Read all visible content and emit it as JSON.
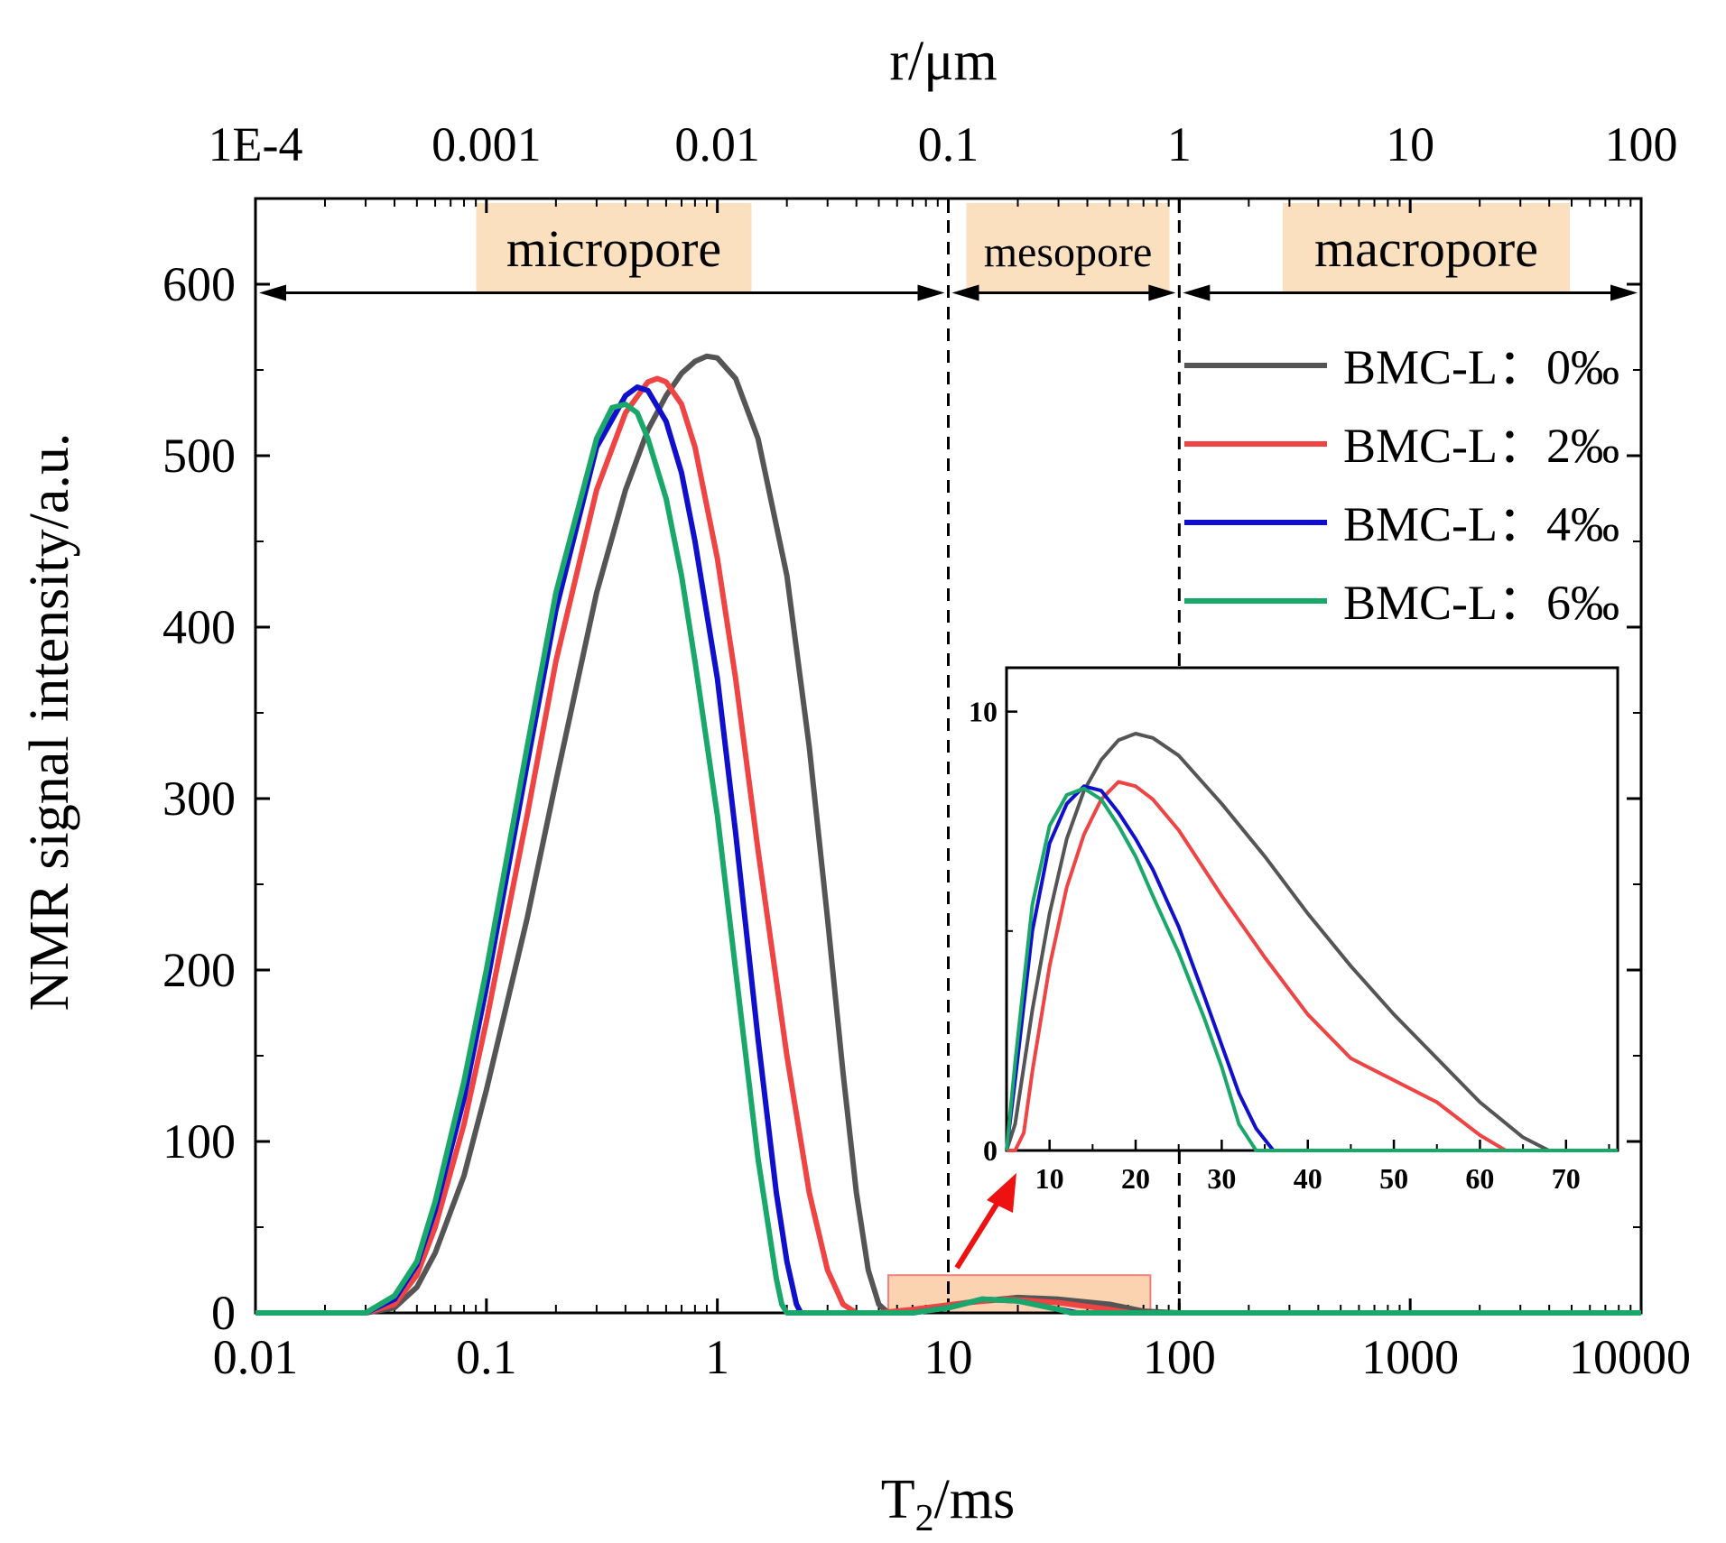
{
  "chart_data": [
    {
      "type": "line",
      "xscale": "log",
      "xlim": [
        0.01,
        10000
      ],
      "ylim": [
        0,
        650
      ],
      "xlabel": "T2/ms",
      "xlabel_main": "T",
      "xlabel_sub": "2",
      "xlabel_rest": "/ms",
      "ylabel": "NMR signal intensity/a.u.",
      "top_axis_label": "r/μm",
      "x_ticks": [
        0.01,
        0.1,
        1,
        10,
        100,
        1000,
        10000
      ],
      "x_tick_labels": [
        "0.01",
        "0.1",
        "1",
        "10",
        "100",
        "1000",
        "10000"
      ],
      "top_ticks": [
        0.01,
        0.1,
        1,
        10,
        100,
        1000,
        10000
      ],
      "top_tick_labels": [
        "1E-4",
        "0.001",
        "0.01",
        "0.1",
        "1",
        "10",
        "100"
      ],
      "y_ticks": [
        0,
        100,
        200,
        300,
        400,
        500,
        600
      ],
      "y_tick_labels": [
        "0",
        "100",
        "200",
        "300",
        "400",
        "500",
        "600"
      ],
      "boundaries": [
        10,
        100
      ],
      "regions": [
        {
          "label": "micropore",
          "from": 0.01,
          "to": 10,
          "color": "#fbe0c0"
        },
        {
          "label": "mesopore",
          "from": 10,
          "to": 100,
          "color": "#fbe0c0"
        },
        {
          "label": "macropore",
          "from": 100,
          "to": 10000,
          "color": "#fbe0c0"
        }
      ],
      "region_arrow_y": 595,
      "highlight_box": {
        "x": [
          5.5,
          75
        ],
        "y": [
          0,
          22
        ],
        "color": "#fbd3b0",
        "border": "#f08080"
      },
      "legend_position": "top-right",
      "series": [
        {
          "name": "BMC-L：0‰",
          "color": "#555555",
          "x": [
            0.01,
            0.03,
            0.04,
            0.05,
            0.06,
            0.08,
            0.1,
            0.15,
            0.2,
            0.3,
            0.4,
            0.5,
            0.6,
            0.7,
            0.8,
            0.9,
            1.0,
            1.2,
            1.5,
            2.0,
            2.5,
            3.0,
            3.5,
            4.0,
            4.5,
            5.0,
            5.5,
            8,
            12,
            20,
            30,
            50,
            70,
            100,
            10000
          ],
          "y": [
            0,
            0,
            3,
            15,
            35,
            80,
            130,
            230,
            310,
            420,
            480,
            515,
            535,
            548,
            555,
            558,
            557,
            545,
            510,
            430,
            330,
            230,
            140,
            70,
            25,
            5,
            0,
            2,
            6,
            9,
            8,
            5,
            1,
            0,
            0
          ]
        },
        {
          "name": "BMC-L：2‰",
          "color": "#ee4444",
          "x": [
            0.01,
            0.03,
            0.04,
            0.05,
            0.06,
            0.08,
            0.1,
            0.15,
            0.2,
            0.3,
            0.4,
            0.5,
            0.55,
            0.6,
            0.7,
            0.8,
            1.0,
            1.2,
            1.5,
            2.0,
            2.5,
            3.0,
            3.5,
            4.0,
            4.5,
            5.0,
            7,
            12,
            18,
            30,
            50,
            62,
            100,
            10000
          ],
          "y": [
            0,
            0,
            5,
            22,
            50,
            110,
            170,
            290,
            380,
            480,
            525,
            543,
            545,
            543,
            530,
            505,
            440,
            370,
            270,
            150,
            70,
            25,
            5,
            0,
            0,
            0,
            2,
            6,
            8,
            6,
            2,
            0,
            0,
            0
          ]
        },
        {
          "name": "BMC-L：4‰",
          "color": "#1010cc",
          "x": [
            0.01,
            0.03,
            0.04,
            0.05,
            0.06,
            0.08,
            0.1,
            0.15,
            0.2,
            0.3,
            0.4,
            0.45,
            0.5,
            0.6,
            0.7,
            0.8,
            1.0,
            1.2,
            1.5,
            1.8,
            2.0,
            2.2,
            2.3,
            7,
            10,
            14,
            20,
            30,
            36,
            100,
            10000
          ],
          "y": [
            0,
            0,
            8,
            28,
            60,
            125,
            190,
            320,
            410,
            505,
            535,
            540,
            538,
            520,
            490,
            450,
            370,
            280,
            160,
            70,
            30,
            5,
            0,
            0,
            3,
            8,
            7,
            2,
            0,
            0,
            0
          ]
        },
        {
          "name": "BMC-L：6‰",
          "color": "#1aa86a",
          "x": [
            0.01,
            0.03,
            0.04,
            0.05,
            0.06,
            0.08,
            0.1,
            0.15,
            0.2,
            0.3,
            0.35,
            0.4,
            0.45,
            0.5,
            0.6,
            0.7,
            0.8,
            1.0,
            1.2,
            1.5,
            1.8,
            1.9,
            2.0,
            7,
            10,
            14,
            20,
            30,
            34,
            100,
            10000
          ],
          "y": [
            0,
            0,
            10,
            30,
            65,
            135,
            200,
            330,
            420,
            510,
            528,
            530,
            525,
            510,
            475,
            430,
            380,
            290,
            200,
            90,
            20,
            5,
            0,
            0,
            3,
            8,
            7,
            2,
            0,
            0,
            0
          ]
        }
      ]
    },
    {
      "type": "line",
      "role": "inset",
      "xlim": [
        5,
        76
      ],
      "ylim": [
        0,
        11
      ],
      "x_ticks": [
        10,
        20,
        30,
        40,
        50,
        60,
        70
      ],
      "x_tick_labels": [
        "10",
        "20",
        "30",
        "40",
        "50",
        "60",
        "70"
      ],
      "y_ticks": [
        0,
        10
      ],
      "y_tick_labels": [
        "0",
        "10"
      ],
      "series": [
        {
          "name": "BMC-L：0‰",
          "color": "#555555",
          "x": [
            5,
            6,
            8,
            10,
            12,
            14,
            16,
            18,
            20,
            22,
            25,
            30,
            35,
            40,
            45,
            50,
            55,
            60,
            65,
            68,
            76
          ],
          "y": [
            0,
            0.6,
            3.2,
            5.4,
            7.1,
            8.2,
            8.9,
            9.35,
            9.5,
            9.4,
            9.0,
            7.9,
            6.7,
            5.4,
            4.2,
            3.1,
            2.1,
            1.1,
            0.3,
            0,
            0
          ]
        },
        {
          "name": "BMC-L：2‰",
          "color": "#ee4444",
          "x": [
            5,
            6,
            7,
            8,
            10,
            12,
            14,
            16,
            18,
            20,
            22,
            25,
            30,
            35,
            40,
            45,
            50,
            55,
            60,
            63,
            76
          ],
          "y": [
            0,
            0,
            0.4,
            1.8,
            4.2,
            6.0,
            7.2,
            8.0,
            8.4,
            8.3,
            8.0,
            7.3,
            5.8,
            4.4,
            3.1,
            2.1,
            1.6,
            1.1,
            0.35,
            0,
            0
          ]
        },
        {
          "name": "BMC-L：4‰",
          "color": "#1010cc",
          "x": [
            5,
            6,
            8,
            10,
            12,
            14,
            16,
            18,
            20,
            22,
            25,
            28,
            30,
            32,
            34,
            36,
            76
          ],
          "y": [
            0,
            1.6,
            5.0,
            7.0,
            7.9,
            8.3,
            8.2,
            7.7,
            7.1,
            6.4,
            5.1,
            3.5,
            2.4,
            1.3,
            0.5,
            0,
            0
          ]
        },
        {
          "name": "BMC-L：6‰",
          "color": "#1aa86a",
          "x": [
            5,
            6,
            8,
            10,
            12,
            14,
            16,
            18,
            20,
            22,
            25,
            28,
            30,
            32,
            34,
            76
          ],
          "y": [
            0,
            2.0,
            5.6,
            7.4,
            8.1,
            8.25,
            8.0,
            7.4,
            6.7,
            5.8,
            4.5,
            3.0,
            1.9,
            0.6,
            0,
            0
          ]
        }
      ]
    }
  ]
}
